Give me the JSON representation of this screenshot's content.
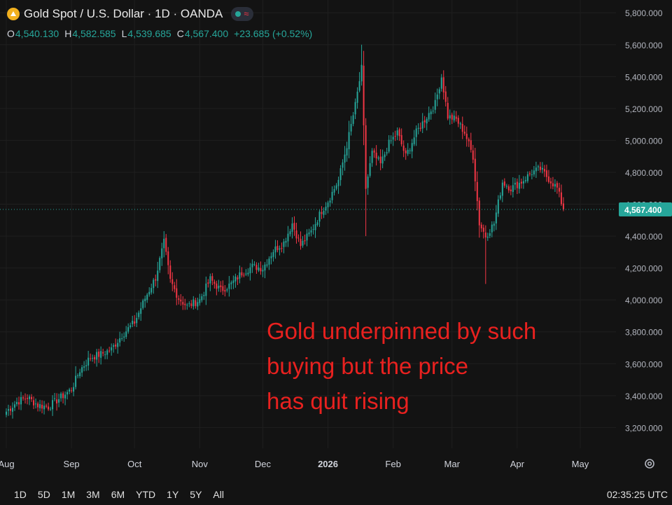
{
  "header": {
    "title": "Gold Spot / U.S. Dollar · 1D · OANDA",
    "logo_icon": "gold-bars-icon",
    "status_icon": "market-open-dot-icon",
    "indicator_icon": "wave-icon"
  },
  "ohlc": {
    "o_label": "O",
    "o": "4,540.130",
    "h_label": "H",
    "h": "4,582.585",
    "l_label": "L",
    "l": "4,539.685",
    "c_label": "C",
    "c": "4,567.400",
    "change": "+23.685 (+0.52%)"
  },
  "annotation": {
    "line1": "Gold underpinned by such",
    "line2": "buying but the price",
    "line3": "has quit rising"
  },
  "footer": {
    "ranges": [
      "1D",
      "5D",
      "1M",
      "3M",
      "6M",
      "YTD",
      "1Y",
      "5Y",
      "All"
    ],
    "time": "02:35:25 UTC"
  },
  "colors": {
    "up": "#26a69a",
    "down": "#f23645",
    "annotation": "#e8211f",
    "price_tag": "#26a69a"
  },
  "chart_data": {
    "type": "candlestick",
    "symbol": "Gold Spot / U.S. Dollar",
    "interval": "1D",
    "y_axis": {
      "ticks": [
        3200,
        3400,
        3600,
        3800,
        4000,
        4200,
        4400,
        4600,
        4800,
        5000,
        5200,
        5400,
        5600,
        5800
      ],
      "tick_labels": [
        "3,200.000",
        "3,400.000",
        "3,600.000",
        "3,800.000",
        "4,000.000",
        "4,200.000",
        "4,400.000",
        "4,600.000",
        "4,800.000",
        "5,000.000",
        "5,200.000",
        "5,400.000",
        "5,600.000",
        "5,800.000"
      ],
      "range": [
        3070,
        5880
      ]
    },
    "x_axis": {
      "labels": [
        "Aug",
        "Sep",
        "Oct",
        "Nov",
        "Dec",
        "2026",
        "Feb",
        "Mar",
        "Apr",
        "May"
      ],
      "label_days": [
        0,
        31,
        61,
        92,
        122,
        153,
        184,
        212,
        243,
        273
      ]
    },
    "last_price": 4567.4,
    "last_price_label": "4,567.400",
    "close_series": [
      {
        "day": 0,
        "close": 3300
      },
      {
        "day": 5,
        "close": 3360
      },
      {
        "day": 10,
        "close": 3390
      },
      {
        "day": 15,
        "close": 3340
      },
      {
        "day": 20,
        "close": 3330
      },
      {
        "day": 25,
        "close": 3380
      },
      {
        "day": 31,
        "close": 3440
      },
      {
        "day": 35,
        "close": 3560
      },
      {
        "day": 40,
        "close": 3640
      },
      {
        "day": 45,
        "close": 3660
      },
      {
        "day": 50,
        "close": 3690
      },
      {
        "day": 55,
        "close": 3780
      },
      {
        "day": 61,
        "close": 3860
      },
      {
        "day": 66,
        "close": 4010
      },
      {
        "day": 71,
        "close": 4140
      },
      {
        "day": 75,
        "close": 4360
      },
      {
        "day": 78,
        "close": 4120
      },
      {
        "day": 82,
        "close": 4010
      },
      {
        "day": 86,
        "close": 3960
      },
      {
        "day": 92,
        "close": 4000
      },
      {
        "day": 97,
        "close": 4130
      },
      {
        "day": 102,
        "close": 4060
      },
      {
        "day": 107,
        "close": 4100
      },
      {
        "day": 112,
        "close": 4170
      },
      {
        "day": 117,
        "close": 4210
      },
      {
        "day": 122,
        "close": 4200
      },
      {
        "day": 127,
        "close": 4310
      },
      {
        "day": 132,
        "close": 4360
      },
      {
        "day": 136,
        "close": 4480
      },
      {
        "day": 140,
        "close": 4340
      },
      {
        "day": 145,
        "close": 4430
      },
      {
        "day": 150,
        "close": 4560
      },
      {
        "day": 153,
        "close": 4620
      },
      {
        "day": 158,
        "close": 4750
      },
      {
        "day": 162,
        "close": 4970
      },
      {
        "day": 166,
        "close": 5220
      },
      {
        "day": 169,
        "close": 5450
      },
      {
        "day": 171,
        "close": 4700
      },
      {
        "day": 174,
        "close": 4920
      },
      {
        "day": 178,
        "close": 4850
      },
      {
        "day": 182,
        "close": 4980
      },
      {
        "day": 186,
        "close": 5050
      },
      {
        "day": 190,
        "close": 4900
      },
      {
        "day": 195,
        "close": 5050
      },
      {
        "day": 200,
        "close": 5150
      },
      {
        "day": 204,
        "close": 5230
      },
      {
        "day": 207,
        "close": 5400
      },
      {
        "day": 210,
        "close": 5150
      },
      {
        "day": 214,
        "close": 5130
      },
      {
        "day": 218,
        "close": 5050
      },
      {
        "day": 222,
        "close": 4900
      },
      {
        "day": 225,
        "close": 4480
      },
      {
        "day": 228,
        "close": 4400
      },
      {
        "day": 232,
        "close": 4480
      },
      {
        "day": 236,
        "close": 4740
      },
      {
        "day": 240,
        "close": 4700
      },
      {
        "day": 245,
        "close": 4740
      },
      {
        "day": 250,
        "close": 4800
      },
      {
        "day": 254,
        "close": 4820
      },
      {
        "day": 258,
        "close": 4760
      },
      {
        "day": 262,
        "close": 4700
      },
      {
        "day": 265,
        "close": 4567
      }
    ]
  }
}
